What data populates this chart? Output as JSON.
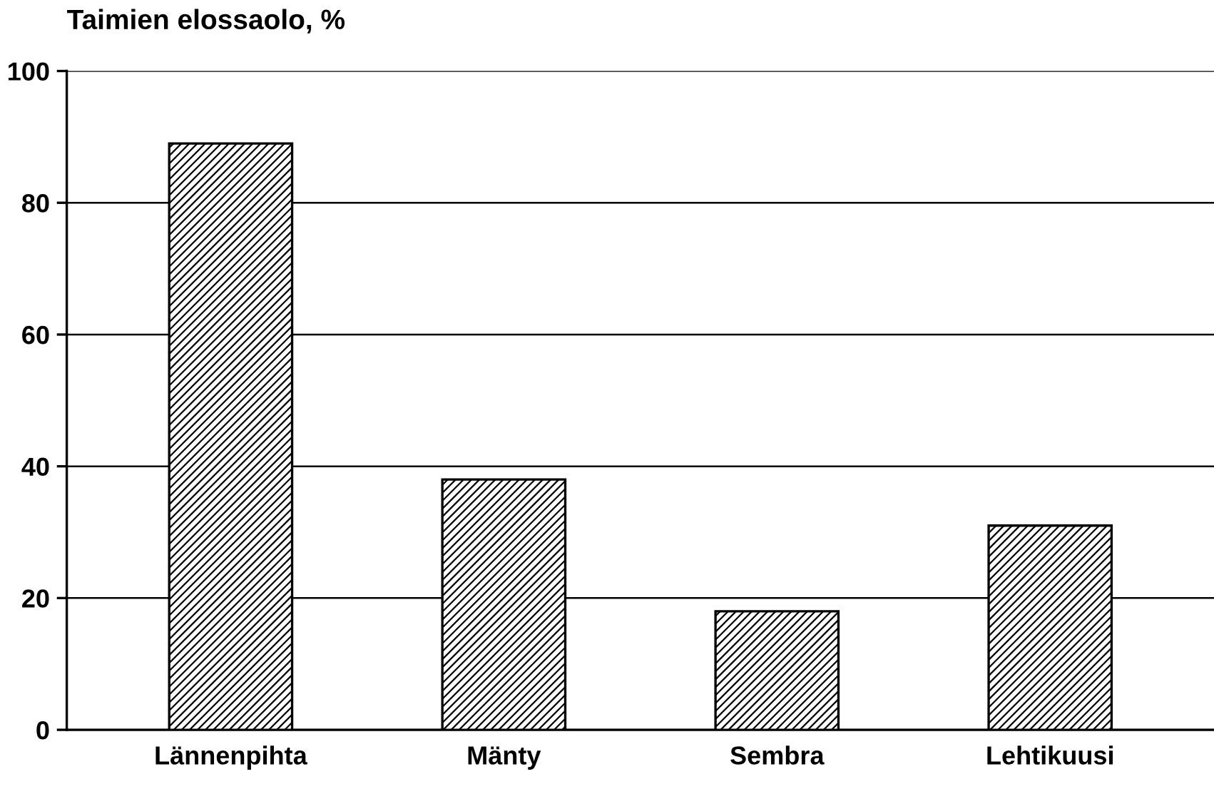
{
  "chart_data": {
    "type": "bar",
    "ylabel": "Taimien elossaolo, %",
    "categories": [
      "Lännenpihta",
      "Mänty",
      "Sembra",
      "Lehtikuusi"
    ],
    "values": [
      89,
      38,
      18,
      31
    ],
    "color": "#000000",
    "ylim": [
      0,
      100
    ],
    "yticks": [
      0,
      20,
      40,
      60,
      80,
      100
    ],
    "grid": "y",
    "legend": false
  }
}
